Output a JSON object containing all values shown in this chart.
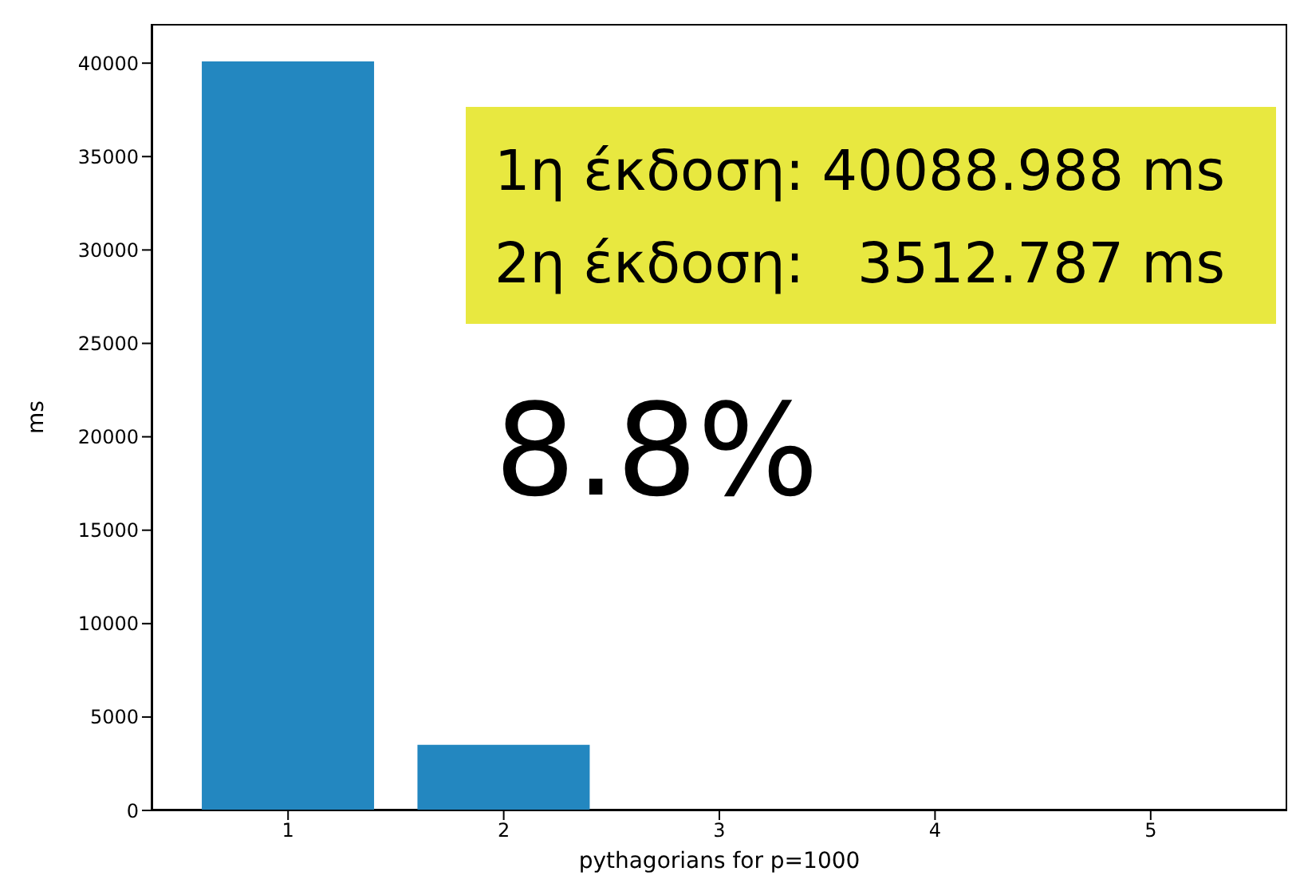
{
  "chart_data": {
    "type": "bar",
    "xlabel": "pythagorians for p=1000",
    "ylabel": "ms",
    "categories": [
      "1",
      "2",
      "3",
      "4",
      "5"
    ],
    "values": [
      40088.988,
      3512.787,
      null,
      null,
      null
    ],
    "color": "#2387c0",
    "ylim": [
      0,
      42100
    ],
    "yticks": [
      0,
      5000,
      10000,
      15000,
      20000,
      25000,
      30000,
      35000,
      40000
    ],
    "annotations": [
      "1η έκδοση: 40088.988 ms",
      "2η έκδοση:   3512.787 ms",
      "8.8%"
    ]
  }
}
